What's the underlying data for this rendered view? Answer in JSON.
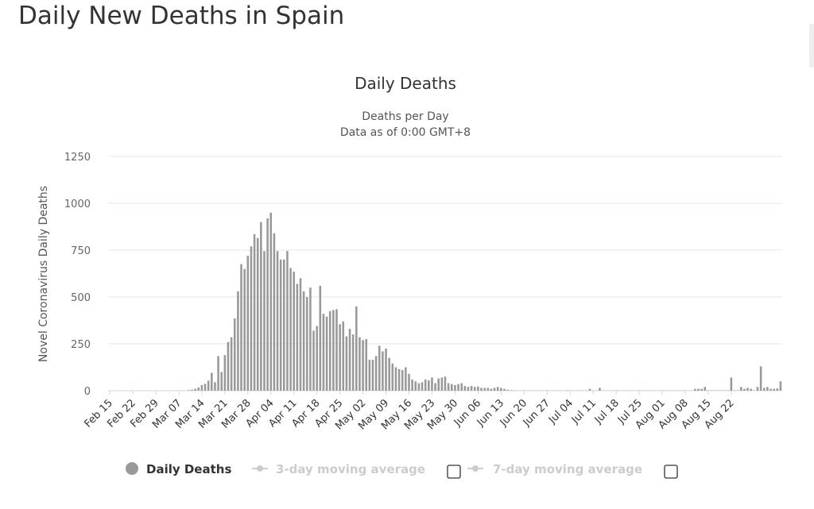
{
  "page": {
    "title": "Daily New Deaths in Spain"
  },
  "chart_data": {
    "type": "bar",
    "title": "Daily Deaths",
    "subtitle_lines": [
      "Deaths per Day",
      "Data as of 0:00 GMT+8"
    ],
    "ylabel": "Novel Coronavirus Daily Deaths",
    "xlabel": "",
    "ylim": [
      0,
      1250
    ],
    "yticks": [
      0,
      250,
      500,
      750,
      1000,
      1250
    ],
    "grid": true,
    "start_date": "Feb 15",
    "xtick_labels": [
      "Feb 15",
      "Feb 22",
      "Feb 29",
      "Mar 07",
      "Mar 14",
      "Mar 21",
      "Mar 28",
      "Apr 04",
      "Apr 11",
      "Apr 18",
      "Apr 25",
      "May 02",
      "May 09",
      "May 16",
      "May 23",
      "May 30",
      "Jun 06",
      "Jun 13",
      "Jun 20",
      "Jun 27",
      "Jul 04",
      "Jul 11",
      "Jul 18",
      "Jul 25",
      "Aug 01",
      "Aug 08",
      "Aug 15",
      "Aug 22"
    ],
    "xtick_interval_days": 7,
    "bar_color": "#999999",
    "series": [
      {
        "name": "Daily Deaths",
        "color": "#999999",
        "values": [
          0,
          0,
          0,
          0,
          0,
          0,
          0,
          0,
          0,
          0,
          0,
          0,
          0,
          0,
          0,
          0,
          0,
          0,
          0,
          0,
          0,
          0,
          1,
          0,
          3,
          5,
          10,
          17,
          30,
          37,
          54,
          95,
          45,
          185,
          100,
          190,
          260,
          285,
          385,
          530,
          675,
          650,
          720,
          770,
          835,
          815,
          900,
          745,
          920,
          950,
          840,
          745,
          700,
          700,
          745,
          655,
          635,
          570,
          600,
          530,
          500,
          550,
          320,
          345,
          560,
          410,
          395,
          425,
          430,
          435,
          355,
          370,
          290,
          330,
          300,
          450,
          285,
          270,
          275,
          165,
          165,
          185,
          240,
          210,
          225,
          175,
          145,
          125,
          115,
          110,
          125,
          90,
          60,
          50,
          40,
          45,
          60,
          55,
          70,
          40,
          65,
          70,
          75,
          40,
          35,
          30,
          35,
          40,
          25,
          20,
          25,
          20,
          22,
          15,
          15,
          15,
          10,
          15,
          20,
          15,
          10,
          5,
          3,
          2,
          1,
          1,
          1,
          1,
          1,
          1,
          1,
          1,
          1,
          1,
          1,
          1,
          1,
          1,
          1,
          2,
          1,
          1,
          1,
          1,
          2,
          1,
          10,
          1,
          1,
          15,
          1,
          1,
          1,
          1,
          1,
          1,
          1,
          1,
          1,
          1,
          1,
          1,
          1,
          1,
          1,
          1,
          1,
          1,
          1,
          1,
          1,
          1,
          1,
          1,
          1,
          1,
          1,
          1,
          10,
          10,
          10,
          20,
          2,
          2,
          2,
          2,
          2,
          2,
          2,
          70,
          2,
          2,
          20,
          10,
          15,
          10,
          2,
          20,
          130,
          15,
          20,
          10,
          10,
          12,
          50
        ]
      }
    ],
    "legend": {
      "position": "bottom",
      "items": [
        {
          "label": "Daily Deaths",
          "enabled": true,
          "checkbox": false
        },
        {
          "label": "3-day moving average",
          "enabled": false,
          "checkbox": true
        },
        {
          "label": "7-day moving average",
          "enabled": false,
          "checkbox": true
        }
      ]
    }
  }
}
